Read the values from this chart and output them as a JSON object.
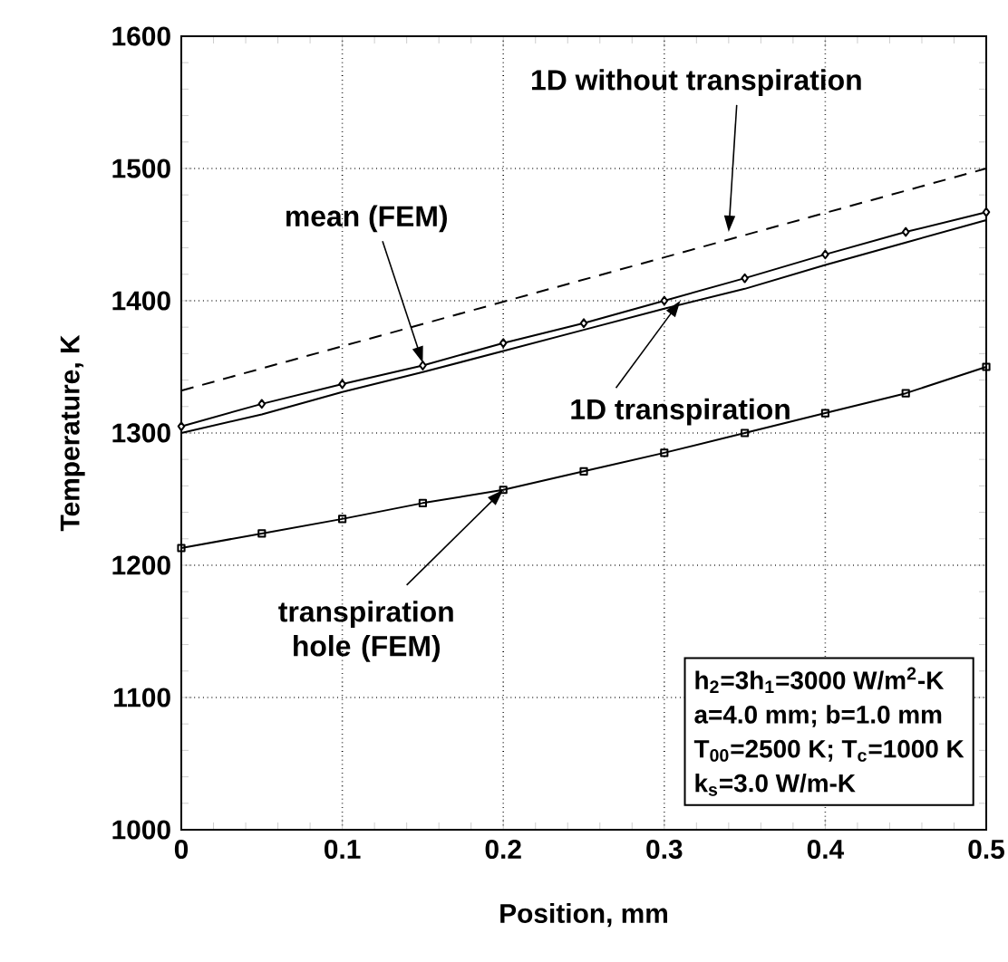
{
  "chart_data": {
    "type": "line",
    "xlabel": "Position, mm",
    "ylabel": "Temperature, K",
    "xlim": [
      0,
      0.5
    ],
    "xticks": [
      0,
      0.1,
      0.2,
      0.3,
      0.4,
      0.5
    ],
    "ylim": [
      1000,
      1600
    ],
    "yticks": [
      1000,
      1100,
      1200,
      1300,
      1400,
      1500,
      1600
    ],
    "grid": true,
    "x": [
      0,
      0.05,
      0.1,
      0.15,
      0.2,
      0.25,
      0.3,
      0.35,
      0.4,
      0.45,
      0.5
    ],
    "series": [
      {
        "color": "#000000",
        "marker": "none",
        "line_style": "dashed",
        "x": [
          0,
          0.5
        ],
        "values": [
          1332,
          1500
        ]
      },
      {
        "color": "#000000",
        "marker": "diamond",
        "line_style": "solid",
        "values": [
          1305,
          1322,
          1337,
          1351,
          1368,
          1383,
          1400,
          1417,
          1435,
          1452,
          1467
        ]
      },
      {
        "color": "#000000",
        "marker": "none",
        "line_style": "solid",
        "values": [
          1300,
          1314,
          1331,
          1346,
          1362,
          1378,
          1394,
          1409,
          1427,
          1444,
          1461
        ]
      },
      {
        "color": "#000000",
        "marker": "square",
        "line_style": "solid",
        "values": [
          1213,
          1224,
          1235,
          1247,
          1257,
          1271,
          1285,
          1300,
          1315,
          1330,
          1350
        ]
      }
    ],
    "annotations": [
      {
        "text": "1D without transpiration",
        "x": 0.34,
        "y": 1452
      },
      {
        "text": "mean (FEM)",
        "x": 0.15,
        "y": 1353
      },
      {
        "text": "1D transpiration",
        "x": 0.31,
        "y": 1400
      },
      {
        "text": "transpiration hole (FEM)",
        "x": 0.2,
        "y": 1257
      },
      "h$_{2}$=3h$_{1}$=3000 W/m$^{2}$-K",
      "a=4.0 mm;  b=1.0 mm",
      "T$_{00}$=2500 K;  T$_{c}$=1000 K",
      "k$_{s}$=3.0 W/m-K"
    ]
  }
}
